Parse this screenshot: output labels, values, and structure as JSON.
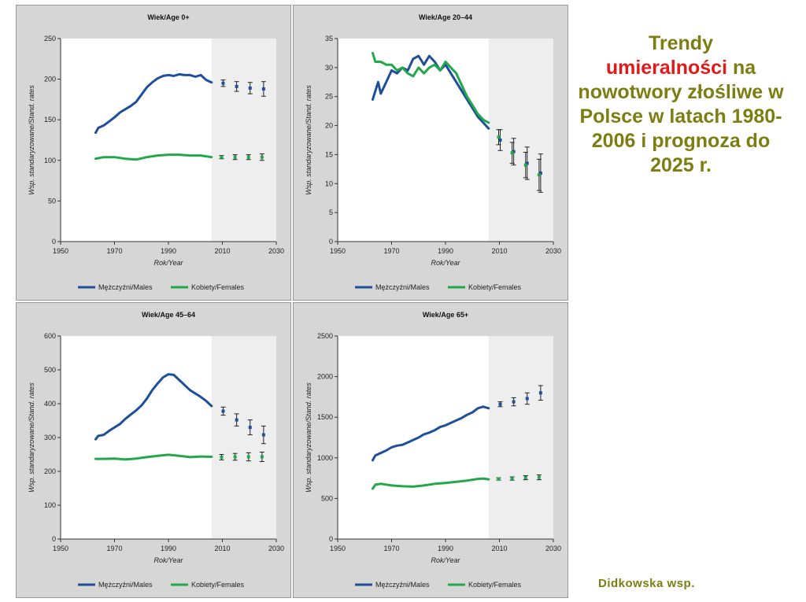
{
  "headline": {
    "part1": "Trendy",
    "highlight": "umieralności",
    "part2": "na nowotwory złośliwe w Polsce w latach 1980-2006 i prognoza do 2025 r."
  },
  "credit": "Didkowska  wsp.",
  "colors": {
    "males": "#1f4e9a",
    "females": "#22a84a",
    "forecast_bg": "#eeeeee",
    "plot_bg": "#ffffff"
  },
  "chart_data": [
    {
      "type": "line",
      "title": "Wiek/Age 0+",
      "xlabel": "Rok/Year",
      "ylabel": "Wsp. standaryzowane/Stand. rates",
      "xlim": [
        1950,
        2030
      ],
      "ylim": [
        0,
        250
      ],
      "xticks": [
        "1950",
        "1970",
        "1990",
        "2010",
        "2030"
      ],
      "yticks": [
        "0",
        "50",
        "100",
        "150",
        "200",
        "250"
      ],
      "forecast_start": 2006,
      "legend": [
        "Mężczyźni/Males",
        "Kobiety/Females"
      ],
      "series": [
        {
          "name": "Mężczyźni/Males",
          "x": [
            1963,
            1964,
            1966,
            1968,
            1970,
            1972,
            1974,
            1976,
            1978,
            1980,
            1982,
            1984,
            1986,
            1988,
            1990,
            1992,
            1994,
            1996,
            1998,
            2000,
            2002,
            2004,
            2006
          ],
          "y": [
            134,
            140,
            143,
            148,
            153,
            159,
            163,
            167,
            172,
            181,
            190,
            196,
            201,
            204,
            205,
            204,
            206,
            205,
            205,
            203,
            205,
            199,
            196
          ]
        },
        {
          "name": "Kobiety/Females",
          "x": [
            1963,
            1966,
            1970,
            1974,
            1978,
            1982,
            1986,
            1990,
            1994,
            1998,
            2002,
            2006
          ],
          "y": [
            102,
            104,
            104,
            102,
            101,
            104,
            106,
            107,
            107,
            106,
            106,
            104
          ]
        }
      ],
      "forecast": [
        {
          "name": "Mężczyźni/Males",
          "x": [
            2010,
            2015,
            2020,
            2025
          ],
          "y": [
            195,
            191,
            189,
            188
          ],
          "err": [
            4,
            6,
            7,
            9
          ]
        },
        {
          "name": "Kobiety/Females",
          "x": [
            2010,
            2015,
            2020,
            2025
          ],
          "y": [
            104,
            104,
            104,
            104
          ],
          "err": [
            2,
            3,
            3,
            4
          ]
        }
      ]
    },
    {
      "type": "line",
      "title": "Wiek/Age 20–44",
      "xlabel": "Rok/Year",
      "ylabel": "Wsp. standaryzowane/Stand. rates",
      "xlim": [
        1950,
        2030
      ],
      "ylim": [
        0,
        35
      ],
      "xticks": [
        "1950",
        "1970",
        "1990",
        "2010",
        "2030"
      ],
      "yticks": [
        "0",
        "5",
        "10",
        "15",
        "20",
        "25",
        "30",
        "35"
      ],
      "forecast_start": 2006,
      "legend": [
        "Mężczyźni/Males",
        "Kobiety/Females"
      ],
      "series": [
        {
          "name": "Mężczyźni/Males",
          "x": [
            1963,
            1965,
            1966,
            1968,
            1970,
            1972,
            1974,
            1976,
            1978,
            1980,
            1982,
            1984,
            1986,
            1988,
            1990,
            1992,
            1994,
            1996,
            1998,
            2000,
            2002,
            2004,
            2006
          ],
          "y": [
            24.5,
            27.5,
            25.5,
            27.5,
            29.5,
            29,
            30,
            29.5,
            31.5,
            32,
            30.5,
            32,
            31,
            29.5,
            30.5,
            29,
            27.5,
            26,
            24.5,
            23,
            21.5,
            20.5,
            19.5
          ]
        },
        {
          "name": "Kobiety/Females",
          "x": [
            1963,
            1964,
            1966,
            1968,
            1970,
            1972,
            1974,
            1976,
            1978,
            1980,
            1982,
            1984,
            1986,
            1988,
            1990,
            1992,
            1994,
            1996,
            1998,
            2000,
            2002,
            2004,
            2006
          ],
          "y": [
            32.5,
            31,
            31,
            30.5,
            30.5,
            29.5,
            30,
            29,
            28.5,
            30,
            29,
            30,
            30.5,
            29.5,
            31,
            30,
            29,
            27,
            25,
            23.5,
            22,
            21,
            20.5
          ]
        }
      ],
      "forecast": [
        {
          "name": "Mężczyźni/Males",
          "x": [
            2010,
            2015,
            2020,
            2025
          ],
          "y": [
            17.5,
            15.5,
            13.5,
            11.8
          ],
          "err": [
            1.8,
            2.3,
            2.8,
            3.3
          ]
        },
        {
          "name": "Kobiety/Females",
          "x": [
            2010,
            2015,
            2020,
            2025
          ],
          "y": [
            18,
            15.3,
            13.2,
            11.5
          ],
          "err": [
            1.3,
            1.8,
            2.2,
            2.7
          ]
        }
      ]
    },
    {
      "type": "line",
      "title": "Wiek/Age 45–64",
      "xlabel": "Rok/Year",
      "ylabel": "Wsp. standaryzowane/Stand. rates",
      "xlim": [
        1950,
        2030
      ],
      "ylim": [
        0,
        600
      ],
      "xticks": [
        "1950",
        "1970",
        "1990",
        "2010",
        "2030"
      ],
      "yticks": [
        "0",
        "100",
        "200",
        "300",
        "400",
        "500",
        "600"
      ],
      "forecast_start": 2006,
      "legend": [
        "Mężczyźni/Males",
        "Kobiety/Females"
      ],
      "series": [
        {
          "name": "Mężczyźni/Males",
          "x": [
            1963,
            1964,
            1966,
            1968,
            1970,
            1972,
            1974,
            1976,
            1978,
            1980,
            1982,
            1984,
            1986,
            1988,
            1990,
            1992,
            1994,
            1996,
            1998,
            2000,
            2002,
            2004,
            2006
          ],
          "y": [
            295,
            305,
            308,
            320,
            330,
            340,
            355,
            368,
            380,
            395,
            415,
            440,
            460,
            478,
            487,
            485,
            470,
            455,
            440,
            430,
            420,
            408,
            393
          ]
        },
        {
          "name": "Kobiety/Females",
          "x": [
            1963,
            1966,
            1970,
            1974,
            1978,
            1982,
            1986,
            1990,
            1994,
            1998,
            2002,
            2006
          ],
          "y": [
            237,
            237,
            238,
            235,
            238,
            242,
            246,
            249,
            246,
            242,
            244,
            243
          ]
        }
      ],
      "forecast": [
        {
          "name": "Mężczyźni/Males",
          "x": [
            2010,
            2015,
            2020,
            2025
          ],
          "y": [
            378,
            352,
            330,
            308
          ],
          "err": [
            12,
            18,
            22,
            26
          ]
        },
        {
          "name": "Kobiety/Females",
          "x": [
            2010,
            2015,
            2020,
            2025
          ],
          "y": [
            242,
            243,
            243,
            243
          ],
          "err": [
            8,
            10,
            12,
            14
          ]
        }
      ]
    },
    {
      "type": "line",
      "title": "Wiek/Age 65+",
      "xlabel": "Rok/Year",
      "ylabel": "Wsp. standaryzowane/Stand. rates",
      "xlim": [
        1950,
        2030
      ],
      "ylim": [
        0,
        2500
      ],
      "xticks": [
        "1950",
        "1970",
        "1990",
        "2010",
        "2030"
      ],
      "yticks": [
        "0",
        "500",
        "1000",
        "1500",
        "2000",
        "2500"
      ],
      "forecast_start": 2006,
      "legend": [
        "Mężczyźni/Males",
        "Kobiety/Females"
      ],
      "series": [
        {
          "name": "Mężczyźni/Males",
          "x": [
            1963,
            1964,
            1966,
            1968,
            1970,
            1972,
            1974,
            1976,
            1978,
            1980,
            1982,
            1984,
            1986,
            1988,
            1990,
            1992,
            1994,
            1996,
            1998,
            2000,
            2002,
            2004,
            2006
          ],
          "y": [
            970,
            1030,
            1060,
            1090,
            1130,
            1150,
            1160,
            1190,
            1220,
            1250,
            1290,
            1310,
            1340,
            1380,
            1400,
            1430,
            1460,
            1490,
            1530,
            1560,
            1610,
            1630,
            1610
          ]
        },
        {
          "name": "Kobiety/Females",
          "x": [
            1963,
            1964,
            1966,
            1970,
            1974,
            1978,
            1982,
            1986,
            1990,
            1994,
            1998,
            2002,
            2004,
            2006
          ],
          "y": [
            620,
            670,
            680,
            660,
            650,
            645,
            660,
            680,
            690,
            705,
            720,
            740,
            745,
            735
          ]
        }
      ],
      "forecast": [
        {
          "name": "Mężczyźni/Males",
          "x": [
            2010,
            2015,
            2020,
            2025
          ],
          "y": [
            1660,
            1690,
            1730,
            1800
          ],
          "err": [
            30,
            50,
            70,
            90
          ]
        },
        {
          "name": "Kobiety/Females",
          "x": [
            2010,
            2015,
            2020,
            2025
          ],
          "y": [
            740,
            745,
            755,
            760
          ],
          "err": [
            15,
            20,
            25,
            30
          ]
        }
      ]
    }
  ]
}
